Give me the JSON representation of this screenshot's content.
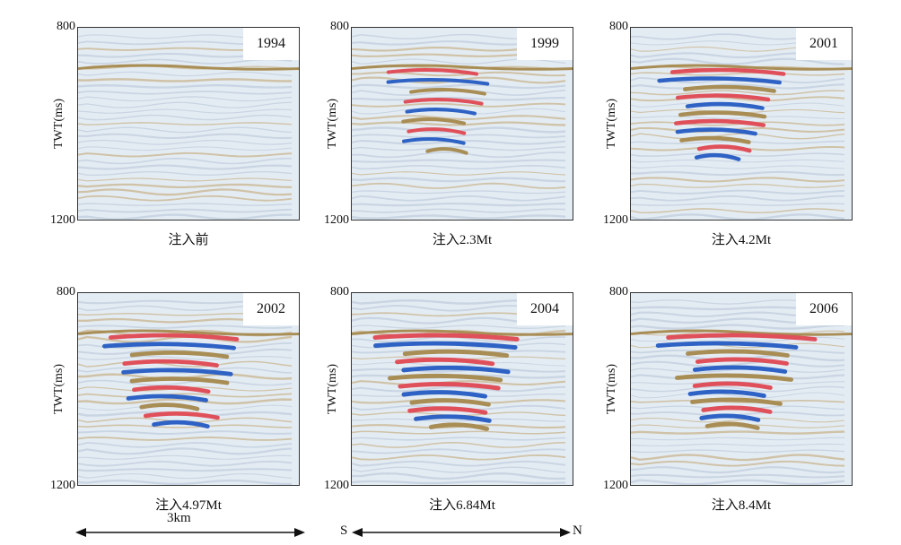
{
  "axis": {
    "ylabel": "TWT(ms)",
    "ytop": "800",
    "ybottom": "1200"
  },
  "panels": [
    {
      "year": "1994",
      "caption": "注入前",
      "intensity": 0.0
    },
    {
      "year": "1999",
      "caption": "注入2.3Mt",
      "intensity": 0.55
    },
    {
      "year": "2001",
      "caption": "注入4.2Mt",
      "intensity": 0.8
    },
    {
      "year": "2002",
      "caption": "注入4.97Mt",
      "intensity": 0.9
    },
    {
      "year": "2004",
      "caption": "注入6.84Mt",
      "intensity": 1.0
    },
    {
      "year": "2006",
      "caption": "注入8.4Mt",
      "intensity": 0.95
    }
  ],
  "scale_bar": {
    "label": "3km"
  },
  "direction": {
    "left": "S",
    "right": "N"
  },
  "colors": {
    "red": "#e0505a",
    "blue": "#2e62c4",
    "tan": "#a88d55",
    "bg": "#e4ecf3"
  }
}
